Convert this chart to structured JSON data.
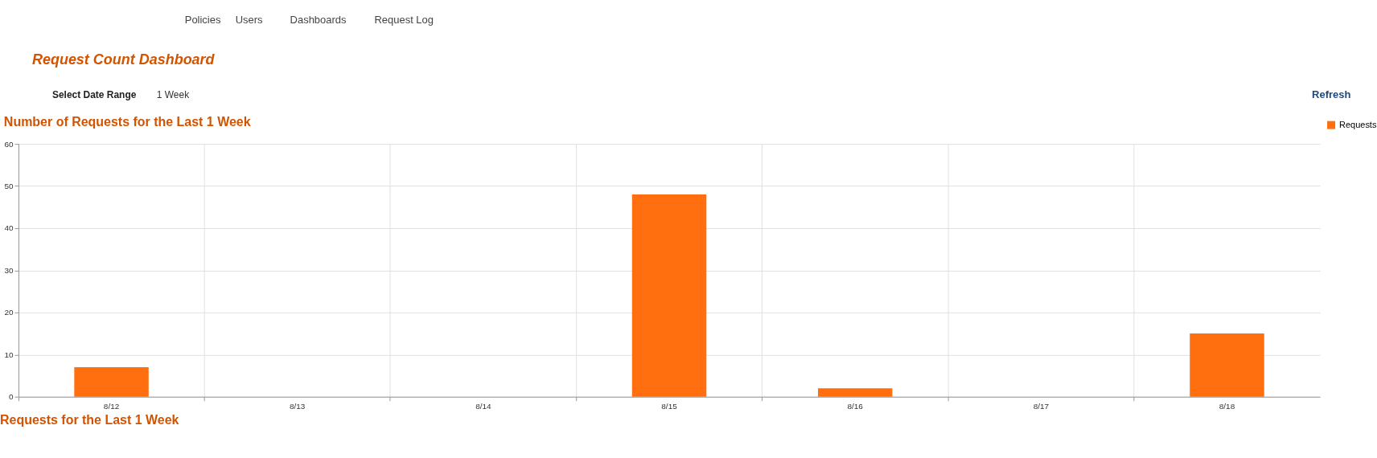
{
  "chart_data": {
    "type": "bar",
    "title": "Number of Requests for the Last 1 Week",
    "annotations": [
      "Policies",
      "Users",
      "Dashboards",
      "Request Log",
      "Request Count Dashboard",
      "Select Date Range",
      "1 Week",
      "Refresh",
      "Requests for the Last 1 Week"
    ],
    "categories": [
      "8/12",
      "8/13",
      "8/14",
      "8/15",
      "8/16",
      "8/17",
      "8/18"
    ],
    "series": [
      {
        "name": "Requests",
        "color": "#ff6f0f",
        "values": [
          7,
          0,
          0,
          48,
          2,
          0,
          15
        ]
      }
    ],
    "ylim": [
      0,
      60
    ],
    "yticks": [
      0,
      10,
      20,
      30,
      40,
      50,
      60
    ],
    "grid": true,
    "legend": "right"
  }
}
